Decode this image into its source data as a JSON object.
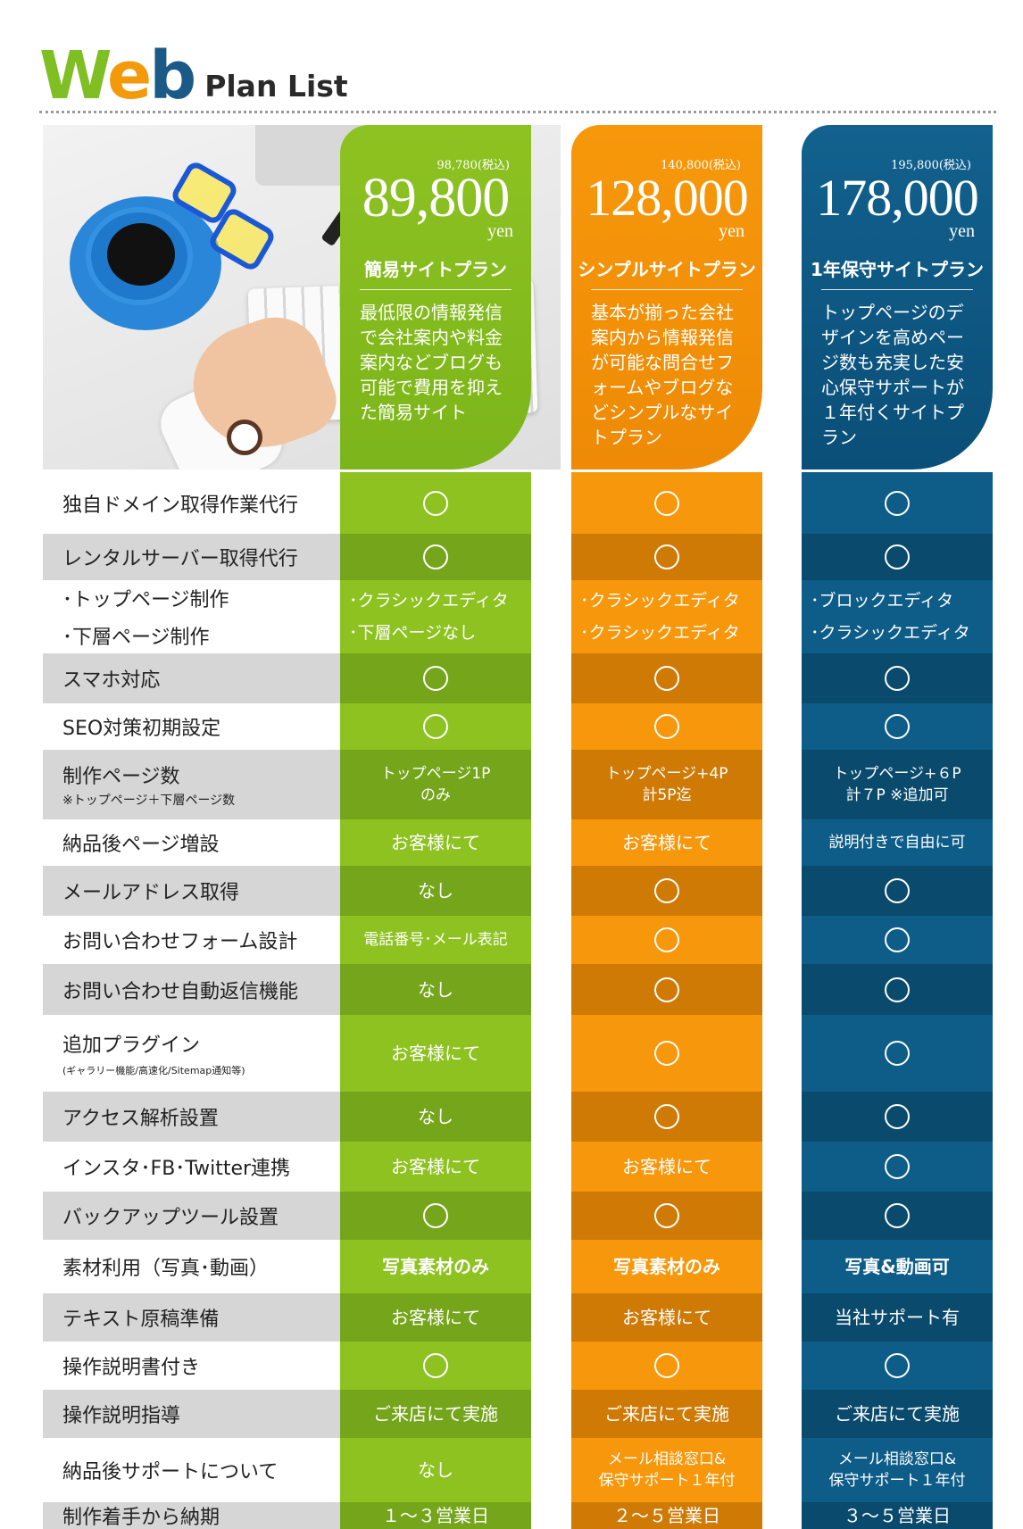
{
  "header": {
    "logo_letters": [
      "W",
      "e",
      "b"
    ],
    "subtitle": "Plan List"
  },
  "plans": [
    {
      "tax": "98,780(税込)",
      "price": "89,800",
      "yen": "yen",
      "name": "簡易サイトプラン",
      "desc": "最低限の情報発信で会社案内や料金案内などブログも可能で費用を抑えた簡易サイト",
      "color": "#8dc221"
    },
    {
      "tax": "140,800(税込)",
      "price": "128,000",
      "yen": "yen",
      "name": "シンプルサイトプラン",
      "desc": "基本が揃った会社案内から情報発信が可能な問合せフォームやブログなどシンプルなサイトプラン",
      "color": "#f7970c"
    },
    {
      "tax": "195,800(税込)",
      "price": "178,000",
      "yen": "yen",
      "name": "1年保守サイトプラン",
      "desc": "トップページのデザインを高めページ数も充実した安心保守サポートが１年付くサイトプラン",
      "color": "#0e5c88"
    }
  ],
  "rows": [
    {
      "label": "独自ドメイン取得作業代行",
      "cells": [
        "circle",
        "circle",
        "circle"
      ]
    },
    {
      "label": "レンタルサーバー取得代行",
      "cells": [
        "circle",
        "circle",
        "circle"
      ]
    },
    {
      "label": "･トップページ制作",
      "label2": "･下層ページ制作",
      "cells": [
        [
          "･クラシックエディタ",
          "･下層ページなし"
        ],
        [
          "･クラシックエディタ",
          "･クラシックエディタ"
        ],
        [
          "･ブロックエディタ",
          "･クラシックエディタ"
        ]
      ]
    },
    {
      "label": "スマホ対応",
      "cells": [
        "circle",
        "circle",
        "circle"
      ]
    },
    {
      "label": "SEO対策初期設定",
      "cells": [
        "circle",
        "circle",
        "circle"
      ]
    },
    {
      "label": "制作ページ数",
      "note": "※トップページ＋下層ページ数",
      "cells": [
        [
          "トップページ1P",
          "のみ"
        ],
        [
          "トップページ+4P",
          "計5P迄"
        ],
        [
          "トップページ+６P",
          "計７P ※追加可"
        ]
      ]
    },
    {
      "label": "納品後ページ増設",
      "cells": [
        "お客様にて",
        "お客様にて",
        "説明付きで自由に可"
      ]
    },
    {
      "label": "メールアドレス取得",
      "cells": [
        "なし",
        "circle",
        "circle"
      ]
    },
    {
      "label": "お問い合わせフォーム設計",
      "cells": [
        "電話番号･メール表記",
        "circle",
        "circle"
      ]
    },
    {
      "label": "お問い合わせ自動返信機能",
      "cells": [
        "なし",
        "circle",
        "circle"
      ]
    },
    {
      "label": "追加プラグイン",
      "note2": "(ギャラリー機能/高速化/Sitemap通知等)",
      "cells": [
        "お客様にて",
        "circle",
        "circle"
      ]
    },
    {
      "label": "アクセス解析設置",
      "cells": [
        "なし",
        "circle",
        "circle"
      ]
    },
    {
      "label": "インスタ･FB･Twitter連携",
      "cells": [
        "お客様にて",
        "お客様にて",
        "circle"
      ]
    },
    {
      "label": "バックアップツール設置",
      "cells": [
        "circle",
        "circle",
        "circle"
      ]
    },
    {
      "label": "素材利用（写真･動画）",
      "cells": [
        "写真素材のみ",
        "写真素材のみ",
        "写真&動画可"
      ],
      "bold": true
    },
    {
      "label": "テキスト原稿準備",
      "cells": [
        "お客様にて",
        "お客様にて",
        "当社サポート有"
      ]
    },
    {
      "label": "操作説明書付き",
      "cells": [
        "circle",
        "circle",
        "circle"
      ]
    },
    {
      "label": "操作説明指導",
      "cells": [
        "ご来店にて実施",
        "ご来店にて実施",
        "ご来店にて実施"
      ]
    },
    {
      "label": "納品後サポートについて",
      "cells": [
        "なし",
        [
          "メール相談窓口&",
          "保守サポート１年付"
        ],
        [
          "メール相談窓口&",
          "保守サポート１年付"
        ]
      ]
    },
    {
      "label": "制作着手から納期",
      "cells": [
        "１〜３営業日",
        "２〜５営業日",
        "３〜５営業日"
      ]
    }
  ]
}
